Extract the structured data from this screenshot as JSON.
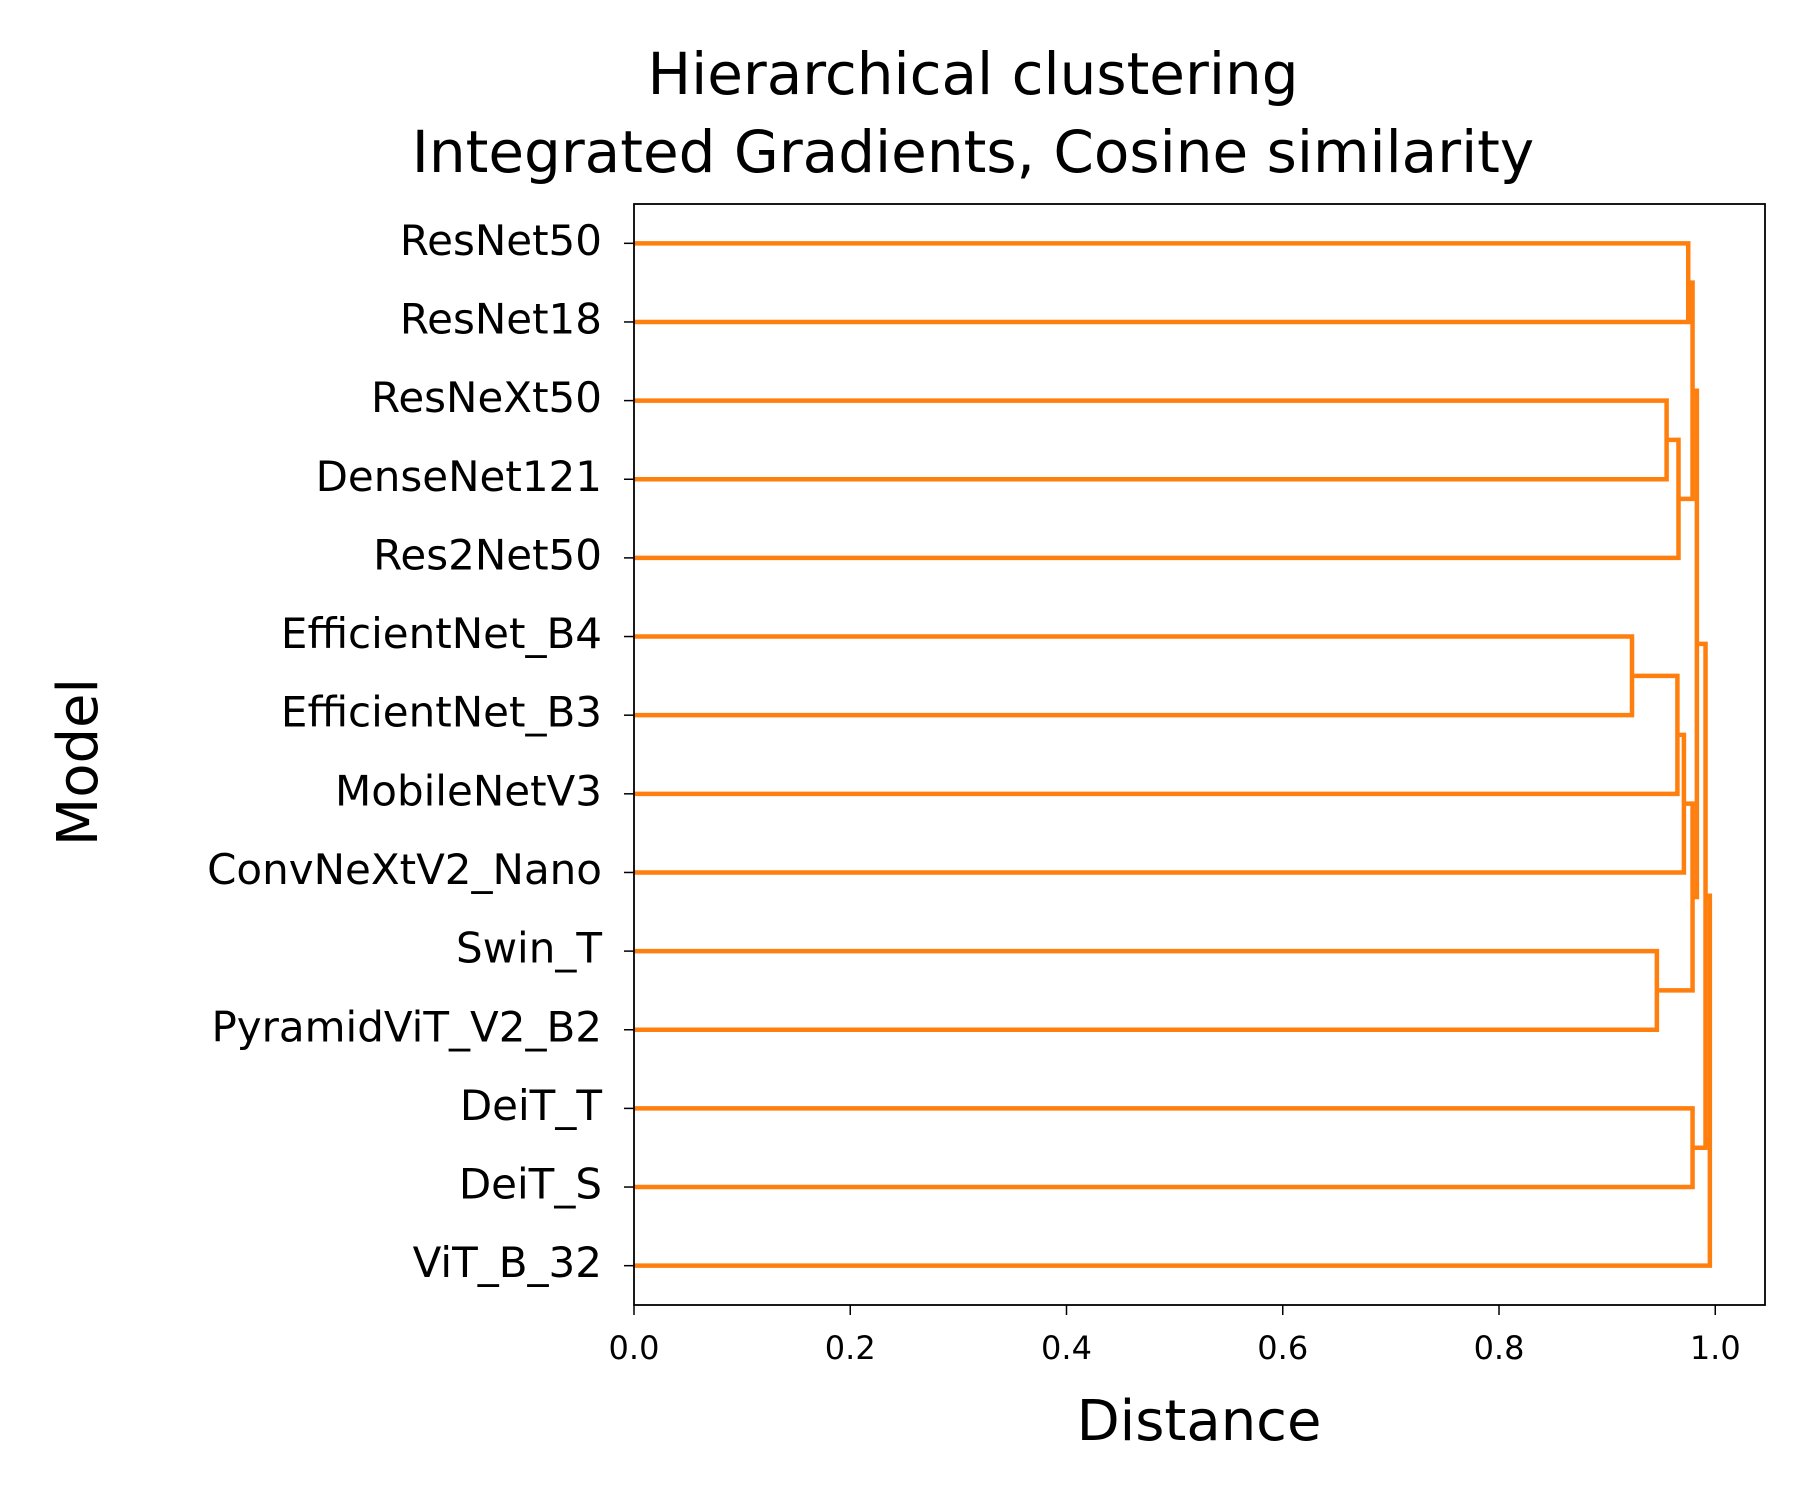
{
  "chart_data": {
    "type": "dendrogram",
    "title": "Hierarchical clustering",
    "subtitle": "Integrated Gradients, Cosine similarity",
    "x_label": "Distance",
    "y_label": "Model",
    "color": "#ff7f0e",
    "categories": [
      "ResNet50",
      "ResNet18",
      "ResNeXt50",
      "DenseNet121",
      "Res2Net50",
      "EfficientNet_B4",
      "EfficientNet_B3",
      "MobileNetV3",
      "ConvNeXtV2_Nano",
      "Swin_T",
      "PyramidViT_V2_B2",
      "DeiT_T",
      "DeiT_S",
      "ViT_B_32"
    ],
    "links": [
      {
        "left": 0,
        "right": 1,
        "distance": 0.975
      },
      {
        "left": 2,
        "right": 3,
        "distance": 0.955
      },
      {
        "left": 15,
        "right": 4,
        "distance": 0.966
      },
      {
        "left": 14,
        "right": 16,
        "distance": 0.979
      },
      {
        "left": 5,
        "right": 6,
        "distance": 0.923
      },
      {
        "left": 18,
        "right": 7,
        "distance": 0.965
      },
      {
        "left": 19,
        "right": 8,
        "distance": 0.971
      },
      {
        "left": 9,
        "right": 10,
        "distance": 0.946
      },
      {
        "left": 20,
        "right": 21,
        "distance": 0.979
      },
      {
        "left": 17,
        "right": 22,
        "distance": 0.983
      },
      {
        "left": 11,
        "right": 12,
        "distance": 0.979
      },
      {
        "left": 23,
        "right": 24,
        "distance": 0.991
      },
      {
        "left": 25,
        "right": 13,
        "distance": 0.995
      }
    ],
    "xlim": [
      0,
      1.046
    ],
    "xticks": [
      {
        "value": 0,
        "label": "0.0"
      },
      0.2,
      0.4,
      0.6,
      0.8,
      {
        "value": 1,
        "label": "1.0"
      }
    ]
  }
}
